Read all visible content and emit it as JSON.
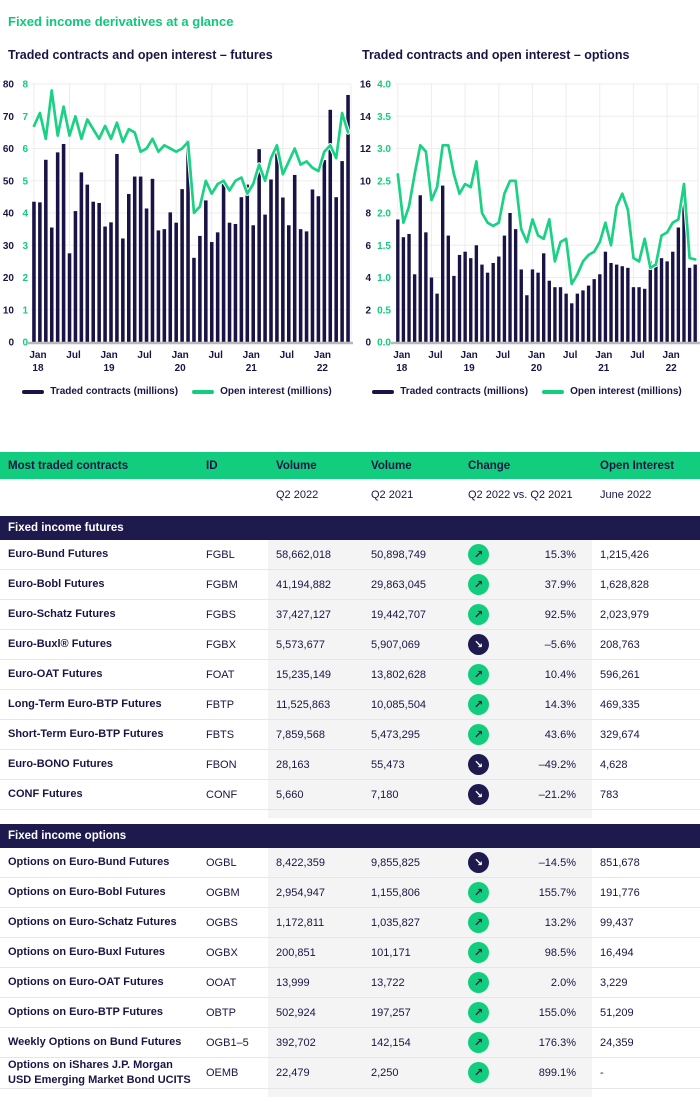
{
  "page_title": "Fixed income derivatives at a glance",
  "colors": {
    "navy": "#1A1446",
    "band_navy": "#1F1A4E",
    "green": "#12CD7D",
    "line_green": "#1BD184",
    "grid": "#EDEDED",
    "axis_line": "#B8B8B8",
    "column_shade": "#F4F4F4",
    "row_border": "#E6E6E6",
    "white": "#FFFFFF"
  },
  "chart_data": [
    {
      "type": "bar",
      "title": "Traded contracts and open interest – futures",
      "left_axis": {
        "min": 0,
        "max": 80,
        "step": 10,
        "labels": [
          "80",
          "70",
          "60",
          "50",
          "40",
          "30",
          "20",
          "10",
          "0"
        ],
        "color": "#1A1446"
      },
      "right_axis": {
        "min": 0,
        "max": 8,
        "step": 1,
        "labels": [
          "8",
          "7",
          "6",
          "5",
          "4",
          "3",
          "2",
          "1",
          "0"
        ],
        "color": "#12CD7D"
      },
      "x_ticks": [
        {
          "i": 0,
          "top": "Jan",
          "bottom": "18"
        },
        {
          "i": 6,
          "top": "Jul"
        },
        {
          "i": 12,
          "top": "Jan",
          "bottom": "19"
        },
        {
          "i": 18,
          "top": "Jul"
        },
        {
          "i": 24,
          "top": "Jan",
          "bottom": "20"
        },
        {
          "i": 30,
          "top": "Jul"
        },
        {
          "i": 36,
          "top": "Jan",
          "bottom": "21"
        },
        {
          "i": 42,
          "top": "Jul"
        },
        {
          "i": 48,
          "top": "Jan",
          "bottom": "22"
        }
      ],
      "bars": {
        "name": "Traded contracts (millions)",
        "values": [
          43.5,
          43.3,
          56.5,
          35.5,
          58.8,
          61.4,
          27.5,
          40.6,
          52.6,
          48.8,
          43.5,
          43.1,
          35.8,
          37.1,
          58.3,
          32.1,
          45.9,
          51.3,
          51.3,
          41.4,
          50.6,
          34.6,
          35.0,
          40.2,
          37.0,
          47.4,
          62.6,
          26.1,
          32.9,
          43.9,
          31.0,
          34.0,
          50.6,
          37.0,
          36.6,
          44.9,
          48.8,
          36.2,
          59.8,
          39.5,
          50.4,
          61.0,
          44.8,
          36.2,
          51.8,
          35.0,
          34.3,
          47.3,
          45.2,
          56.4,
          72.0,
          44.9,
          56.1,
          76.6
        ]
      },
      "line": {
        "name": "Open interest (millions)",
        "values": [
          6.7,
          7.1,
          6.3,
          7.8,
          6.4,
          7.3,
          6.4,
          7.0,
          6.3,
          6.9,
          6.6,
          6.3,
          6.7,
          6.3,
          6.8,
          6.2,
          6.6,
          6.5,
          5.9,
          6.0,
          6.3,
          5.9,
          6.1,
          6.0,
          5.9,
          6.0,
          6.2,
          4.0,
          4.2,
          5.0,
          4.6,
          4.9,
          5.0,
          4.7,
          5.0,
          5.1,
          4.6,
          4.9,
          5.5,
          5.0,
          5.7,
          6.1,
          5.2,
          5.6,
          6.0,
          5.5,
          5.6,
          5.4,
          5.3,
          5.9,
          6.1,
          5.7,
          7.1,
          6.5
        ]
      }
    },
    {
      "type": "bar",
      "title": "Traded contracts and open interest – options",
      "left_axis": {
        "min": 0,
        "max": 16,
        "step": 2,
        "labels": [
          "16",
          "14",
          "12",
          "10",
          "8",
          "6",
          "4",
          "2",
          "0"
        ],
        "color": "#1A1446"
      },
      "right_axis": {
        "min": 0,
        "max": 4,
        "step": 0.5,
        "labels": [
          "4.0",
          "3.5",
          "3.0",
          "2.5",
          "2.0",
          "1.5",
          "1.0",
          "0.5",
          "0.0"
        ],
        "color": "#12CD7D"
      },
      "x_ticks": [
        {
          "i": 0,
          "top": "Jan",
          "bottom": "18"
        },
        {
          "i": 6,
          "top": "Jul"
        },
        {
          "i": 12,
          "top": "Jan",
          "bottom": "19"
        },
        {
          "i": 18,
          "top": "Jul"
        },
        {
          "i": 24,
          "top": "Jan",
          "bottom": "20"
        },
        {
          "i": 30,
          "top": "Jul"
        },
        {
          "i": 36,
          "top": "Jan",
          "bottom": "21"
        },
        {
          "i": 42,
          "top": "Jul"
        },
        {
          "i": 48,
          "top": "Jan",
          "bottom": "22"
        }
      ],
      "bars": {
        "name": "Traded contracts (millions)",
        "values": [
          7.6,
          6.5,
          6.7,
          4.2,
          9.1,
          6.8,
          4.0,
          3.0,
          9.7,
          6.6,
          4.1,
          5.4,
          5.6,
          5.2,
          6.0,
          4.8,
          4.3,
          4.9,
          5.3,
          6.6,
          8.0,
          7.0,
          4.5,
          2.9,
          4.5,
          4.3,
          5.5,
          3.8,
          3.4,
          3.4,
          3.0,
          2.4,
          3.0,
          3.2,
          3.5,
          3.9,
          4.2,
          5.6,
          4.9,
          4.8,
          4.7,
          4.6,
          3.4,
          3.4,
          3.3,
          5.0,
          4.8,
          5.2,
          5.0,
          5.6,
          7.1,
          8.7,
          4.6,
          4.8
        ]
      },
      "line": {
        "name": "Open interest (millions)",
        "values": [
          2.6,
          1.85,
          2.1,
          2.6,
          3.05,
          2.95,
          2.2,
          2.4,
          3.05,
          3.05,
          2.6,
          2.3,
          2.45,
          2.4,
          2.8,
          2.0,
          1.85,
          1.8,
          1.85,
          2.3,
          2.5,
          2.5,
          1.75,
          1.55,
          1.9,
          1.65,
          1.6,
          1.9,
          1.25,
          1.55,
          1.6,
          0.9,
          1.05,
          1.25,
          1.35,
          1.4,
          1.55,
          1.85,
          1.5,
          2.1,
          2.3,
          2.05,
          1.3,
          1.25,
          1.6,
          1.15,
          1.2,
          1.65,
          1.7,
          1.85,
          1.9,
          2.45,
          1.3,
          1.28
        ]
      }
    }
  ],
  "table": {
    "header": {
      "name": "Most traded contracts",
      "id": "ID",
      "vol1": "Volume",
      "vol2": "Volume",
      "change": "Change",
      "open_interest": "Open Interest"
    },
    "subheader": {
      "vol1": "Q2 2022",
      "vol2": "Q2 2021",
      "change": "Q2 2022 vs. Q2 2021",
      "open_interest": "June 2022"
    },
    "sections": [
      {
        "label": "Fixed income futures",
        "rows": [
          {
            "name": "Euro-Bund Futures",
            "id": "FGBL",
            "vol1": "58,662,018",
            "vol2": "50,898,749",
            "direction": "up",
            "change": "15.3%",
            "open_interest": "1,215,426"
          },
          {
            "name": "Euro-Bobl Futures",
            "id": "FGBM",
            "vol1": "41,194,882",
            "vol2": "29,863,045",
            "direction": "up",
            "change": "37.9%",
            "open_interest": "1,628,828"
          },
          {
            "name": "Euro-Schatz Futures",
            "id": "FGBS",
            "vol1": "37,427,127",
            "vol2": "19,442,707",
            "direction": "up",
            "change": "92.5%",
            "open_interest": "2,023,979"
          },
          {
            "name": "Euro-Buxl® Futures",
            "id": "FGBX",
            "vol1": "5,573,677",
            "vol2": "5,907,069",
            "direction": "down",
            "change": "–5.6%",
            "open_interest": "208,763"
          },
          {
            "name": "Euro-OAT Futures",
            "id": "FOAT",
            "vol1": "15,235,149",
            "vol2": "13,802,628",
            "direction": "up",
            "change": "10.4%",
            "open_interest": "596,261"
          },
          {
            "name": "Long-Term Euro-BTP Futures",
            "id": "FBTP",
            "vol1": "11,525,863",
            "vol2": "10,085,504",
            "direction": "up",
            "change": "14.3%",
            "open_interest": "469,335"
          },
          {
            "name": "Short-Term Euro-BTP Futures",
            "id": "FBTS",
            "vol1": "7,859,568",
            "vol2": "5,473,295",
            "direction": "up",
            "change": "43.6%",
            "open_interest": "329,674"
          },
          {
            "name": "Euro-BONO Futures",
            "id": "FBON",
            "vol1": "28,163",
            "vol2": "55,473",
            "direction": "down",
            "change": "–49.2%",
            "open_interest": "4,628"
          },
          {
            "name": "CONF Futures",
            "id": "CONF",
            "vol1": "5,660",
            "vol2": "7,180",
            "direction": "down",
            "change": "–21.2%",
            "open_interest": "783"
          }
        ]
      },
      {
        "label": "Fixed income options",
        "rows": [
          {
            "name": "Options on Euro-Bund Futures",
            "id": "OGBL",
            "vol1": "8,422,359",
            "vol2": "9,855,825",
            "direction": "down",
            "change": "–14.5%",
            "open_interest": "851,678"
          },
          {
            "name": "Options on Euro-Bobl Futures",
            "id": "OGBM",
            "vol1": "2,954,947",
            "vol2": "1,155,806",
            "direction": "up",
            "change": "155.7%",
            "open_interest": "191,776"
          },
          {
            "name": "Options on Euro-Schatz Futures",
            "id": "OGBS",
            "vol1": "1,172,811",
            "vol2": "1,035,827",
            "direction": "up",
            "change": "13.2%",
            "open_interest": "99,437"
          },
          {
            "name": "Options on Euro-Buxl Futures",
            "id": "OGBX",
            "vol1": "200,851",
            "vol2": "101,171",
            "direction": "up",
            "change": "98.5%",
            "open_interest": "16,494"
          },
          {
            "name": "Options on Euro-OAT Futures",
            "id": "OOAT",
            "vol1": "13,999",
            "vol2": "13,722",
            "direction": "up",
            "change": "2.0%",
            "open_interest": "3,229"
          },
          {
            "name": "Options on Euro-BTP Futures",
            "id": "OBTP",
            "vol1": "502,924",
            "vol2": "197,257",
            "direction": "up",
            "change": "155.0%",
            "open_interest": "51,209"
          },
          {
            "name": "Weekly Options on Bund Futures",
            "id": "OGB1–5",
            "vol1": "392,702",
            "vol2": "142,154",
            "direction": "up",
            "change": "176.3%",
            "open_interest": "24,359"
          },
          {
            "name": "Options on iShares J.P. Morgan USD Emerging Market Bond UCITS",
            "id": "OEMB",
            "vol1": "22,479",
            "vol2": "2,250",
            "direction": "up",
            "change": "899.1%",
            "open_interest": "-"
          }
        ]
      }
    ],
    "icons": {
      "up": "↗",
      "down": "↘"
    }
  }
}
